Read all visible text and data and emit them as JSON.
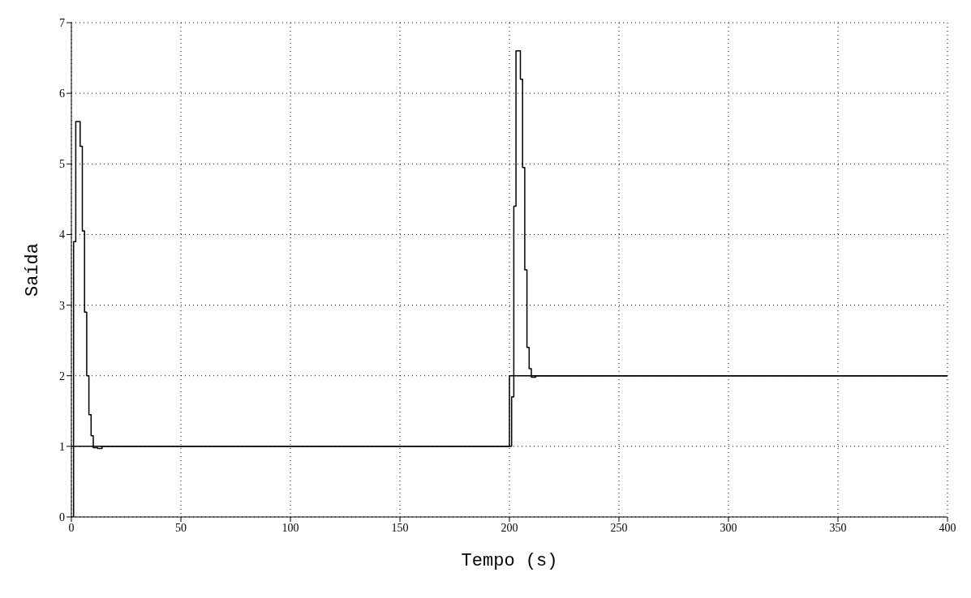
{
  "chart_data": {
    "type": "step",
    "xlabel": "Tempo (s)",
    "ylabel": "Saída",
    "xlim": [
      0,
      400
    ],
    "ylim": [
      0,
      7
    ],
    "xticks": [
      0,
      50,
      100,
      150,
      200,
      250,
      300,
      350,
      400
    ],
    "yticks": [
      0,
      1,
      2,
      3,
      4,
      5,
      6,
      7
    ],
    "grid": true,
    "line_style": "solid",
    "series": [
      {
        "color": "#000000",
        "x": [
          0,
          200,
          400
        ],
        "values": [
          1,
          2,
          2
        ]
      },
      {
        "color": "#000000",
        "x": [
          0,
          1,
          2,
          3,
          4,
          5,
          6,
          7,
          8,
          9,
          10,
          12,
          14,
          200,
          201,
          202,
          203,
          205,
          206,
          207,
          208,
          209,
          210,
          212,
          400
        ],
        "values": [
          0,
          3.9,
          5.6,
          5.6,
          5.25,
          4.05,
          2.9,
          2,
          1.45,
          1.15,
          0.98,
          0.97,
          1,
          1,
          1.7,
          4.4,
          6.6,
          6.2,
          4.95,
          3.5,
          2.4,
          2.1,
          1.98,
          2,
          2
        ]
      }
    ]
  }
}
